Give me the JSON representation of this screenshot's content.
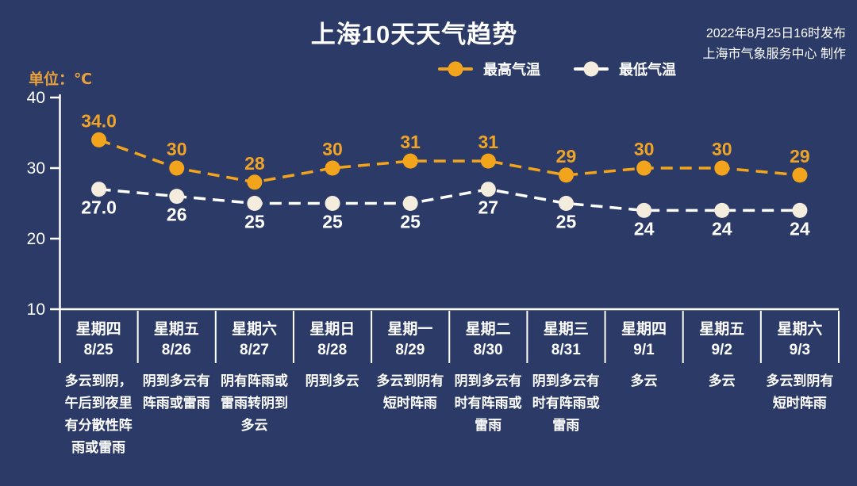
{
  "header": {
    "title": "上海10天天气趋势",
    "publish_line1": "2022年8月25日16时发布",
    "publish_line2": "上海市气象服务中心 制作"
  },
  "colors": {
    "background": "#2B3A66",
    "axis": "#FFFFFF",
    "unit_text": "#E8A13C",
    "high_line": "#F2A51C",
    "high_label": "#EFA327",
    "low_line": "#FFFFFF",
    "low_marker": "#F4ECDC",
    "low_label": "#FFFFFF",
    "tick_label": "#FFFFFF",
    "day_text": "#FFFFFF"
  },
  "chart_data": {
    "type": "line",
    "title": "上海10天天气趋势",
    "unit_label": "单位：℃",
    "ylim": [
      10,
      40
    ],
    "yticks": [
      40,
      30,
      20,
      10
    ],
    "grid": false,
    "legend_position": "top",
    "categories": [
      {
        "weekday": "星期四",
        "date": "8/25",
        "weather": "多云到阴，午后到夜里有分散性阵雨或雷雨"
      },
      {
        "weekday": "星期五",
        "date": "8/26",
        "weather": "阴到多云有阵雨或雷雨"
      },
      {
        "weekday": "星期六",
        "date": "8/27",
        "weather": "阴有阵雨或雷雨转阴到多云"
      },
      {
        "weekday": "星期日",
        "date": "8/28",
        "weather": "阴到多云"
      },
      {
        "weekday": "星期一",
        "date": "8/29",
        "weather": "多云到阴有短时阵雨"
      },
      {
        "weekday": "星期二",
        "date": "8/30",
        "weather": "阴到多云有时有阵雨或雷雨"
      },
      {
        "weekday": "星期三",
        "date": "8/31",
        "weather": "阴到多云有时有阵雨或雷雨"
      },
      {
        "weekday": "星期四",
        "date": "9/1",
        "weather": "多云"
      },
      {
        "weekday": "星期五",
        "date": "9/2",
        "weather": "多云"
      },
      {
        "weekday": "星期六",
        "date": "9/3",
        "weather": "多云到阴有短时阵雨"
      }
    ],
    "series": [
      {
        "name": "最高气温",
        "values": [
          34.0,
          30,
          28,
          30,
          31,
          31,
          29,
          30,
          30,
          29
        ],
        "labels": [
          "34.0",
          "30",
          "28",
          "30",
          "31",
          "31",
          "29",
          "30",
          "30",
          "29"
        ],
        "label_placement": "above"
      },
      {
        "name": "最低气温",
        "values": [
          27.0,
          26,
          25,
          25,
          25,
          27,
          25,
          24,
          24,
          24
        ],
        "labels": [
          "27.0",
          "26",
          "25",
          "25",
          "25",
          "27",
          "25",
          "24",
          "24",
          "24"
        ],
        "label_placement": "below"
      }
    ]
  }
}
